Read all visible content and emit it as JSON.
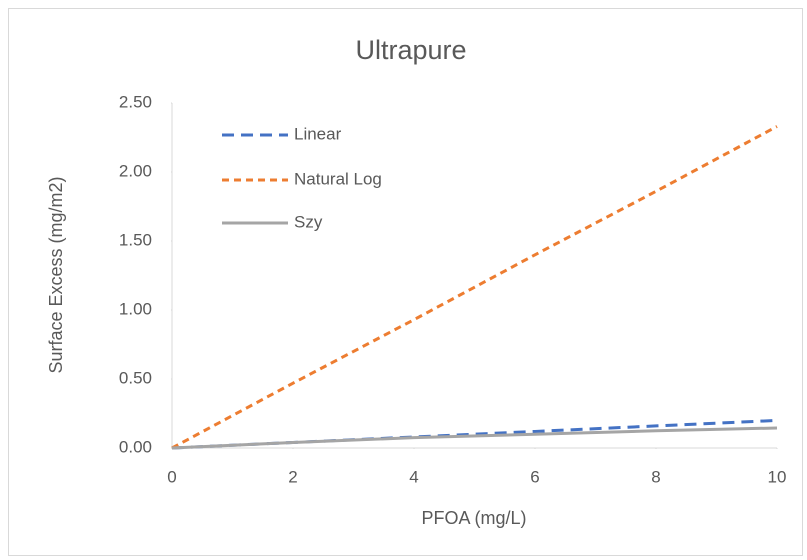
{
  "chart_data": {
    "type": "line",
    "title": "Ultrapure",
    "x_label": "PFOA (mg/L)",
    "y_label": "Surface Excess (mg/m2)",
    "x": [
      0,
      2,
      4,
      6,
      8,
      10
    ],
    "series": [
      {
        "name": "Linear",
        "color": "#4472c4",
        "dash": "12,7",
        "values": [
          0,
          0.04,
          0.08,
          0.12,
          0.16,
          0.2
        ]
      },
      {
        "name": "Natural Log",
        "color": "#ed7d31",
        "dash": "7,5",
        "values": [
          0,
          0.47,
          0.93,
          1.4,
          1.86,
          2.33
        ]
      },
      {
        "name": "Szy",
        "color": "#a5a5a5",
        "dash": "none",
        "values": [
          0,
          0.04,
          0.075,
          0.1,
          0.125,
          0.145
        ]
      }
    ],
    "xlim": [
      0,
      10
    ],
    "xticks": [
      0,
      2,
      4,
      6,
      8,
      10
    ],
    "ylim": [
      0,
      2.5
    ],
    "yticks": [
      {
        "value": 0,
        "label": "0.00"
      },
      {
        "value": 0.5,
        "label": "0.50"
      },
      {
        "value": 1,
        "label": "1.00"
      },
      {
        "value": 1.5,
        "label": "1.50"
      },
      {
        "value": 2,
        "label": "2.00"
      },
      {
        "value": 2.5,
        "label": "2.50"
      }
    ],
    "grid": false,
    "legend": "upper-left"
  }
}
